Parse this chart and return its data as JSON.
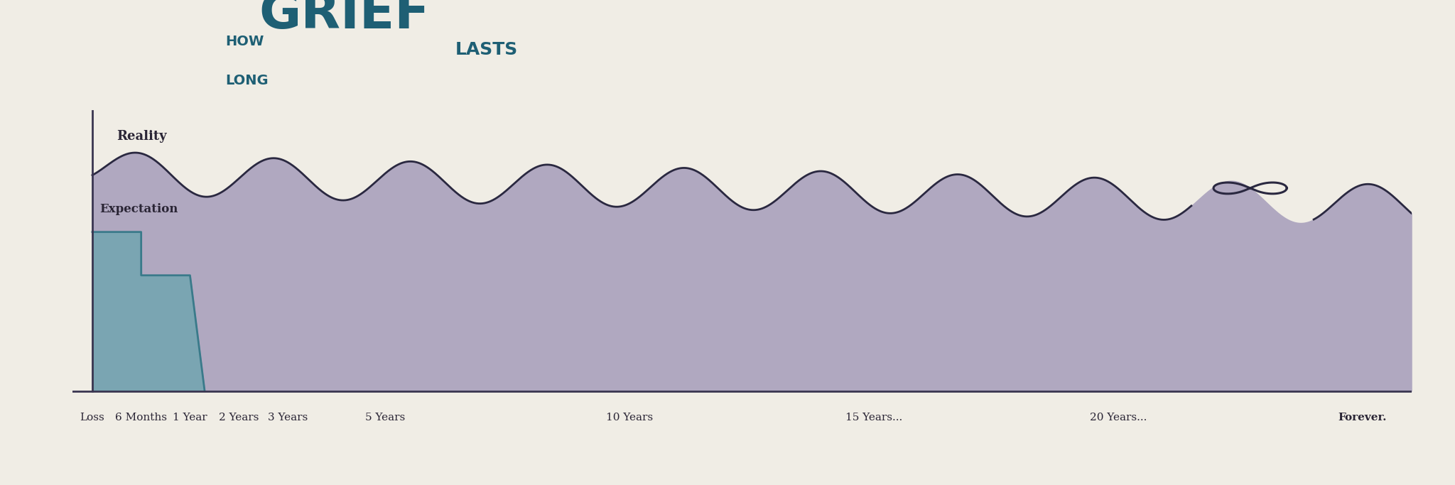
{
  "title_how": "HOW",
  "title_long": "LONG",
  "title_grief": "GRIEF",
  "title_lasts": "LASTS",
  "background_color": "#f0ede5",
  "reality_fill_color": "#b0a8c0",
  "reality_line_color": "#2a2840",
  "expectation_fill_color": "#7aa5b2",
  "expectation_line_color": "#3a7a8a",
  "axis_color": "#3a3550",
  "text_color": "#2a2535",
  "x_labels": [
    "Loss",
    "6 Months",
    "1 Year",
    "2 Years",
    "3 Years",
    "5 Years",
    "10 Years",
    "15 Years...",
    "20 Years...",
    "Forever."
  ],
  "x_positions": [
    0,
    1,
    2,
    3,
    4,
    6,
    11,
    16,
    21,
    26
  ],
  "reality_label": "Reality",
  "expectation_label": "Expectation",
  "title_color": "#1e5f74"
}
